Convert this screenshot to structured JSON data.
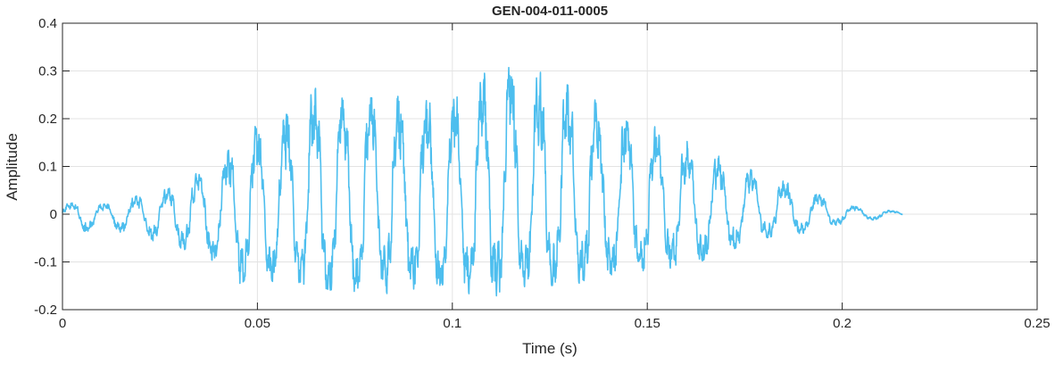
{
  "chart_data": {
    "type": "line",
    "title": "GEN-004-011-0005",
    "xlabel": "Time (s)",
    "ylabel": "Amplitude",
    "xlim": [
      0,
      0.25
    ],
    "ylim": [
      -0.2,
      0.4
    ],
    "xticks": [
      0,
      0.05,
      0.1,
      0.15,
      0.2,
      0.25
    ],
    "xtick_labels": [
      "0",
      "0.05",
      "0.1",
      "0.15",
      "0.2",
      "0.25"
    ],
    "yticks": [
      -0.2,
      -0.1,
      0,
      0.1,
      0.2,
      0.3,
      0.4
    ],
    "ytick_labels": [
      "-0.2",
      "-0.1",
      "0",
      "0.1",
      "0.2",
      "0.3",
      "0.4"
    ],
    "grid": true,
    "legend": "none",
    "line_color": "#4DBEEE",
    "series": [
      {
        "duration_s": 0.2155,
        "envelope": {
          "t": [
            0,
            0.005,
            0.01,
            0.02,
            0.03,
            0.035,
            0.04,
            0.045,
            0.05,
            0.06,
            0.063,
            0.07,
            0.08,
            0.09,
            0.1,
            0.105,
            0.11,
            0.114,
            0.12,
            0.13,
            0.14,
            0.15,
            0.16,
            0.17,
            0.18,
            0.19,
            0.2,
            0.21,
            0.2155
          ],
          "max": [
            0.02,
            0.03,
            0.02,
            0.04,
            0.06,
            0.09,
            0.1,
            0.17,
            0.19,
            0.22,
            0.28,
            0.25,
            0.26,
            0.24,
            0.25,
            0.3,
            0.31,
            0.34,
            0.31,
            0.28,
            0.22,
            0.19,
            0.16,
            0.12,
            0.08,
            0.06,
            0.02,
            0.01,
            0.005
          ],
          "min": [
            -0.02,
            -0.04,
            -0.03,
            -0.05,
            -0.07,
            -0.09,
            -0.11,
            -0.15,
            -0.15,
            -0.14,
            -0.16,
            -0.16,
            -0.17,
            -0.16,
            -0.15,
            -0.17,
            -0.18,
            -0.16,
            -0.15,
            -0.15,
            -0.13,
            -0.12,
            -0.11,
            -0.08,
            -0.05,
            -0.04,
            -0.02,
            -0.01,
            -0.005
          ]
        }
      }
    ]
  }
}
